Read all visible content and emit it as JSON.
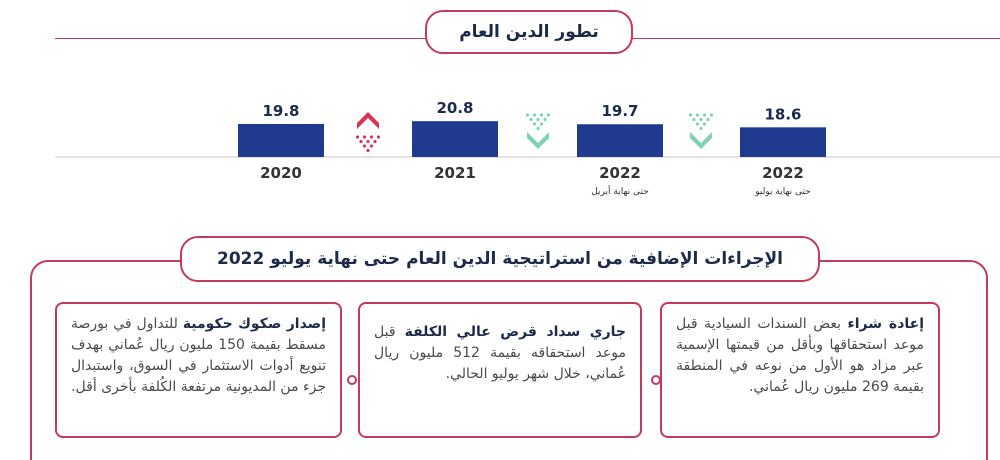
{
  "top_title": "تطور الدين العام",
  "section_title": "الإجراءات الإضافية من استراتيجية الدين العام حتى نهاية يوليو 2022",
  "colors": {
    "bar": "#1f3a8f",
    "accent": "#c43a5c",
    "down": "#7fd3b5",
    "up": "#d9365a"
  },
  "chart_data": {
    "type": "bar",
    "categories": [
      "2020",
      "2021",
      "2022",
      "2022"
    ],
    "sublabels": [
      "",
      "",
      "حتى نهاية أبريل",
      "حتى نهاية يوليو"
    ],
    "values": [
      19.8,
      20.8,
      19.7,
      18.6
    ],
    "value_labels": [
      "19.8",
      "20.8",
      "19.7",
      "18.6"
    ],
    "trend": [
      "up",
      "down",
      "down"
    ]
  },
  "cards": [
    {
      "lead": "إعادة شراء",
      "rest": " بعض السندات السيادية قبل موعد استحقاقها وبأقل من قيمتها الإسمية عبر مزاد هو الأول من نوعه في المنطقة بقيمة 269 مليون ريال عُماني."
    },
    {
      "lead": "جاري سداد قرض عالي الكلفة",
      "rest": " قبل موعد استحقاقه بقيمة 512 مليون ريال عُماني، خلال شهر يوليو الحالي."
    },
    {
      "lead": "إصدار صكوك حكومية",
      "rest": " للتداول في بورصة مسقط بقيمة 150 مليون ريال عُماني بهدف تنويع أدوات الاستثمار في السوق، واستبدال جزء من المديونية مرتفعة الكُلفة بأخرى أقل."
    }
  ]
}
